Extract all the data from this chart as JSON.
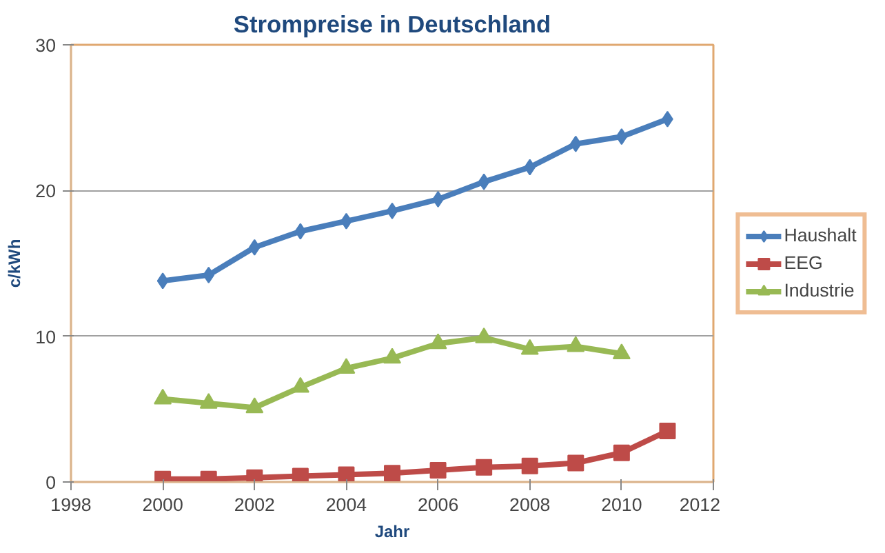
{
  "chart_data": {
    "type": "line",
    "title": "Strompreise in Deutschland",
    "xlabel": "Jahr",
    "ylabel": "c/kWh",
    "x": [
      2000,
      2001,
      2002,
      2003,
      2004,
      2005,
      2006,
      2007,
      2008,
      2009,
      2010,
      2011
    ],
    "series": [
      {
        "name": "Haushalt",
        "color": "#4a7ebb",
        "marker": "diamond",
        "values": [
          13.8,
          14.2,
          16.1,
          17.2,
          17.9,
          18.6,
          19.4,
          20.6,
          21.6,
          23.2,
          23.7,
          24.9
        ]
      },
      {
        "name": "EEG",
        "color": "#be4b48",
        "marker": "square",
        "values": [
          0.2,
          0.2,
          0.3,
          0.4,
          0.5,
          0.6,
          0.8,
          1.0,
          1.1,
          1.3,
          2.0,
          3.5
        ]
      },
      {
        "name": "Industrie",
        "color": "#98b954",
        "marker": "triangle",
        "values": [
          5.7,
          5.4,
          5.1,
          6.5,
          7.8,
          8.5,
          9.5,
          9.9,
          9.1,
          9.3,
          8.8,
          null
        ]
      }
    ],
    "xlim": [
      1998,
      2012
    ],
    "xticks": [
      1998,
      2000,
      2002,
      2004,
      2006,
      2008,
      2010,
      2012
    ],
    "ylim": [
      0,
      30
    ],
    "yticks": [
      0,
      10,
      20,
      30
    ],
    "grid": "y",
    "legend": "right",
    "line_style": "solid"
  }
}
